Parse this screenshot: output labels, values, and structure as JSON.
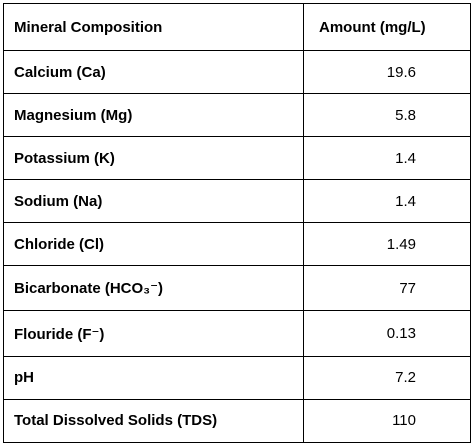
{
  "table": {
    "header": [
      "Mineral Composition",
      "Amount (mg/L)"
    ],
    "rows": [
      [
        "Calcium (Ca)",
        "19.6"
      ],
      [
        "Magnesium (Mg)",
        "5.8"
      ],
      [
        "Potassium (K)",
        "1.4"
      ],
      [
        "Sodium (Na)",
        "1.4"
      ],
      [
        "Chloride (Cl)",
        "1.49"
      ],
      [
        "Bicarbonate (HCO₃⁻)",
        "77"
      ],
      [
        "Flouride (F⁻)",
        "0.13"
      ],
      [
        "pH",
        "7.2"
      ],
      [
        "Total Dissolved Solids (TDS)",
        "110"
      ]
    ]
  }
}
